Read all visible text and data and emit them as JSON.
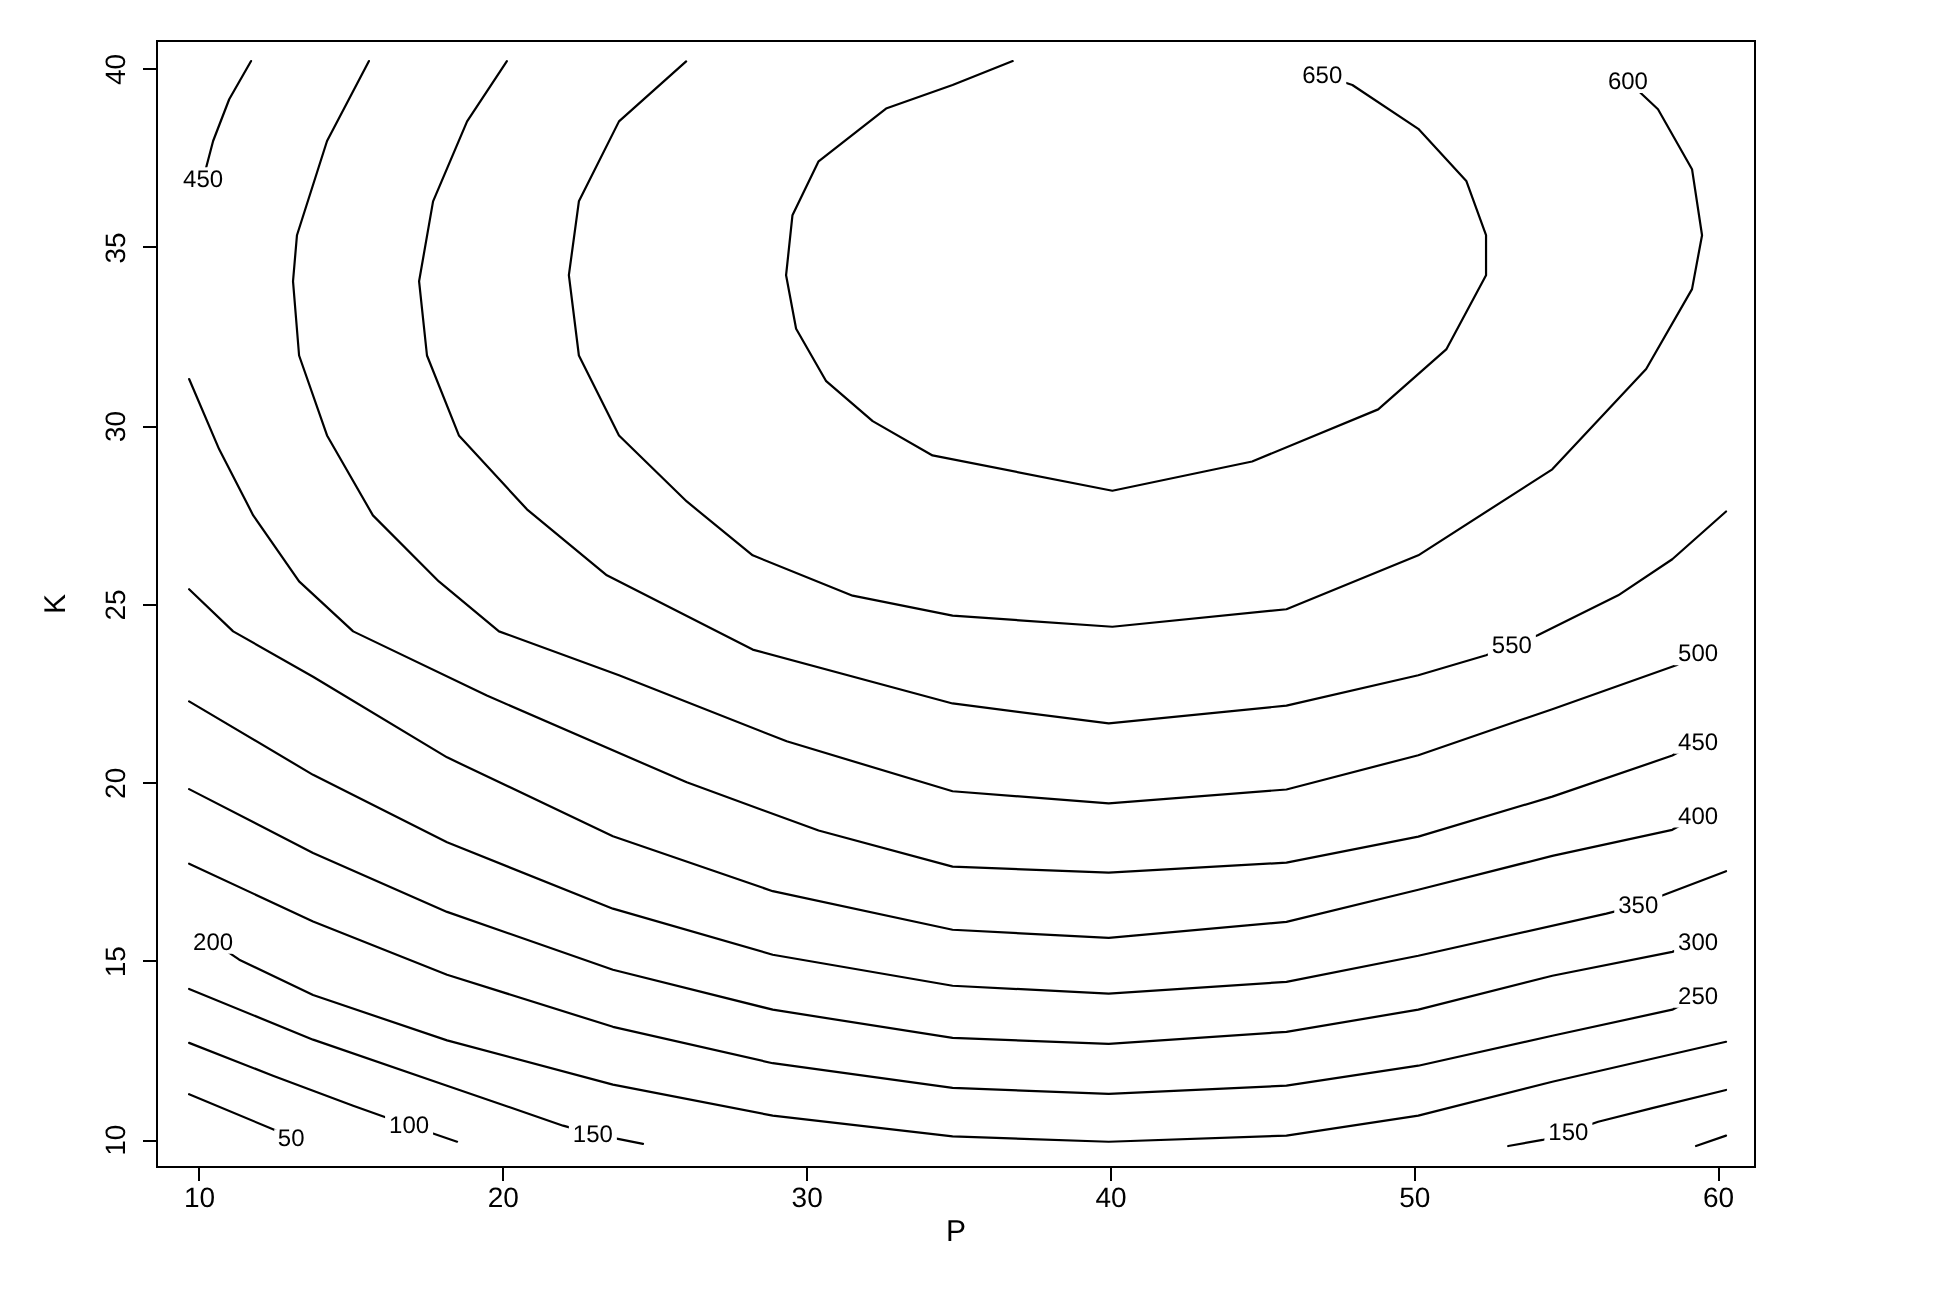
{
  "chart_data": {
    "type": "line",
    "xlabel": "P",
    "ylabel": "K",
    "xlim": [
      8.6,
      61.2
    ],
    "ylim": [
      9.25,
      40.8
    ],
    "xticks": [
      10,
      20,
      30,
      40,
      50,
      60
    ],
    "yticks": [
      10,
      15,
      20,
      25,
      30,
      35,
      40
    ],
    "marker": "none",
    "line_style": "solid",
    "series": [
      {
        "color": "#000000",
        "x": [
          9.69,
          12.45,
          13.05
        ],
        "values": [
          11.26,
          10.28,
          10.04
        ]
      },
      {
        "color": "#000000",
        "x": [
          9.69,
          12.45,
          15.09,
          16.2,
          16.93,
          18.51,
          40.0,
          59.29,
          60.28
        ],
        "values": [
          12.7,
          11.78,
          10.94,
          10.6,
          10.39,
          9.93,
          null,
          9.81,
          10.1
        ]
      },
      {
        "color": "#000000",
        "x": [
          9.69,
          13.77,
          18.18,
          22.0,
          22.98,
          24.63,
          40.0,
          53.11,
          54.24,
          55.09,
          56.07,
          57.85,
          60.28
        ],
        "values": [
          14.21,
          12.79,
          11.5,
          10.38,
          10.15,
          9.87,
          null,
          9.81,
          9.98,
          10.2,
          10.49,
          10.87,
          11.38
        ]
      },
      {
        "color": "#000000",
        "x": [
          10.48,
          11.34,
          13.77,
          18.18,
          23.64,
          28.9,
          34.82,
          39.96,
          45.81,
          50.15,
          54.56,
          60.28
        ],
        "values": [
          15.53,
          15.03,
          14.04,
          12.77,
          11.53,
          10.66,
          10.08,
          9.93,
          10.1,
          10.66,
          11.61,
          12.73
        ]
      },
      {
        "color": "#000000",
        "x": [
          9.69,
          13.77,
          18.18,
          23.64,
          28.9,
          34.82,
          39.96,
          45.81,
          50.15,
          54.56,
          58.51,
          59.36
        ],
        "values": [
          17.72,
          16.1,
          14.61,
          13.15,
          12.13,
          11.44,
          11.27,
          11.5,
          12.06,
          12.9,
          13.63,
          14.02
        ]
      },
      {
        "color": "#000000",
        "x": [
          9.69,
          13.77,
          18.18,
          23.64,
          28.9,
          34.82,
          39.96,
          45.81,
          50.15,
          54.56,
          58.51,
          59.36
        ],
        "values": [
          19.81,
          18.02,
          16.37,
          14.75,
          13.63,
          12.84,
          12.67,
          13.01,
          13.63,
          14.58,
          15.25,
          15.53
        ]
      },
      {
        "color": "#000000",
        "x": [
          9.69,
          13.77,
          18.18,
          23.64,
          28.9,
          34.82,
          39.96,
          45.81,
          50.15,
          56.34,
          57.39,
          58.18,
          60.28
        ],
        "values": [
          22.27,
          20.21,
          18.32,
          16.46,
          15.17,
          14.3,
          14.08,
          14.41,
          15.14,
          16.32,
          16.55,
          16.83,
          17.51
        ]
      },
      {
        "color": "#000000",
        "x": [
          9.69,
          11.14,
          13.77,
          18.18,
          23.64,
          28.9,
          34.82,
          39.96,
          45.81,
          50.15,
          54.56,
          58.51,
          59.36
        ],
        "values": [
          25.41,
          24.23,
          22.96,
          20.7,
          18.49,
          16.95,
          15.87,
          15.64,
          16.09,
          16.99,
          17.94,
          18.67,
          19.07
        ]
      },
      {
        "color": "#000000",
        "x": [
          10.15,
          10.48,
          11.01,
          11.73,
          10.0,
          9.69,
          10.68,
          11.8,
          13.31,
          15.09,
          19.49,
          26.07,
          30.41,
          34.82,
          39.96,
          45.81,
          50.15,
          54.56,
          58.51,
          59.36
        ],
        "values": [
          36.9,
          37.97,
          39.14,
          40.21,
          null,
          31.3,
          29.33,
          27.48,
          25.63,
          24.23,
          22.43,
          20.0,
          18.65,
          17.64,
          17.47,
          17.75,
          18.48,
          19.6,
          20.75,
          21.14
        ]
      },
      {
        "color": "#000000",
        "x": [
          15.61,
          14.23,
          13.24,
          13.11,
          13.31,
          14.23,
          15.74,
          17.91,
          19.89,
          23.84,
          29.36,
          34.82,
          39.96,
          45.81,
          50.15,
          54.56,
          58.64,
          59.36
        ],
        "values": [
          40.21,
          37.97,
          35.33,
          34.04,
          31.96,
          29.72,
          27.48,
          25.63,
          24.23,
          23.0,
          21.15,
          19.75,
          19.41,
          19.8,
          20.76,
          22.05,
          23.28,
          23.62
        ]
      },
      {
        "color": "#000000",
        "x": [
          20.15,
          18.84,
          17.72,
          17.26,
          17.52,
          18.57,
          20.81,
          23.44,
          28.24,
          34.82,
          39.96,
          45.81,
          50.15,
          52.38,
          53.23,
          54.08,
          56.73,
          58.51,
          60.28
        ],
        "values": [
          40.21,
          38.52,
          36.28,
          34.04,
          31.96,
          29.72,
          27.65,
          25.8,
          23.72,
          22.21,
          21.65,
          22.15,
          23.0,
          23.56,
          23.84,
          24.12,
          25.24,
          26.25,
          27.59
        ]
      },
      {
        "color": "#000000",
        "x": [
          26.05,
          23.84,
          22.52,
          22.19,
          22.52,
          23.84,
          26.07,
          28.24,
          31.53,
          34.82,
          40.08,
          45.81,
          50.15,
          54.56,
          57.65,
          59.16,
          59.49,
          59.16,
          58.04,
          57.05
        ],
        "values": [
          40.2,
          38.52,
          36.28,
          34.21,
          31.96,
          29.72,
          27.87,
          26.36,
          25.23,
          24.67,
          24.36,
          24.85,
          26.36,
          28.77,
          31.58,
          33.82,
          35.33,
          37.18,
          38.86,
          39.65
        ]
      },
      {
        "color": "#000000",
        "x": [
          36.8,
          34.82,
          32.63,
          30.41,
          29.55,
          29.34,
          29.67,
          30.66,
          32.19,
          34.16,
          40.08,
          44.68,
          48.83,
          51.07,
          52.38,
          52.38,
          51.73,
          50.15,
          47.98,
          46.99
        ],
        "values": [
          40.21,
          39.54,
          38.88,
          37.4,
          35.89,
          34.21,
          32.71,
          31.24,
          30.12,
          29.16,
          28.17,
          28.99,
          30.45,
          32.13,
          34.21,
          35.33,
          36.85,
          38.31,
          39.54,
          39.82
        ]
      }
    ],
    "annotations": [
      {
        "text": "50",
        "x": 13.05,
        "y": 10.04
      },
      {
        "text": "100",
        "x": 16.93,
        "y": 10.39
      },
      {
        "text": "150",
        "x": 22.98,
        "y": 10.15
      },
      {
        "text": "150",
        "x": 55.09,
        "y": 10.2
      },
      {
        "text": "200",
        "x": 10.48,
        "y": 15.53
      },
      {
        "text": "250",
        "x": 59.36,
        "y": 14.02
      },
      {
        "text": "300",
        "x": 59.36,
        "y": 15.53
      },
      {
        "text": "350",
        "x": 57.39,
        "y": 16.55
      },
      {
        "text": "400",
        "x": 59.36,
        "y": 19.07
      },
      {
        "text": "450",
        "x": 59.36,
        "y": 21.14
      },
      {
        "text": "450",
        "x": 10.15,
        "y": 36.9
      },
      {
        "text": "500",
        "x": 59.36,
        "y": 23.62
      },
      {
        "text": "550",
        "x": 53.23,
        "y": 23.84
      },
      {
        "text": "600",
        "x": 57.05,
        "y": 39.65
      },
      {
        "text": "650",
        "x": 46.99,
        "y": 39.82
      }
    ]
  }
}
